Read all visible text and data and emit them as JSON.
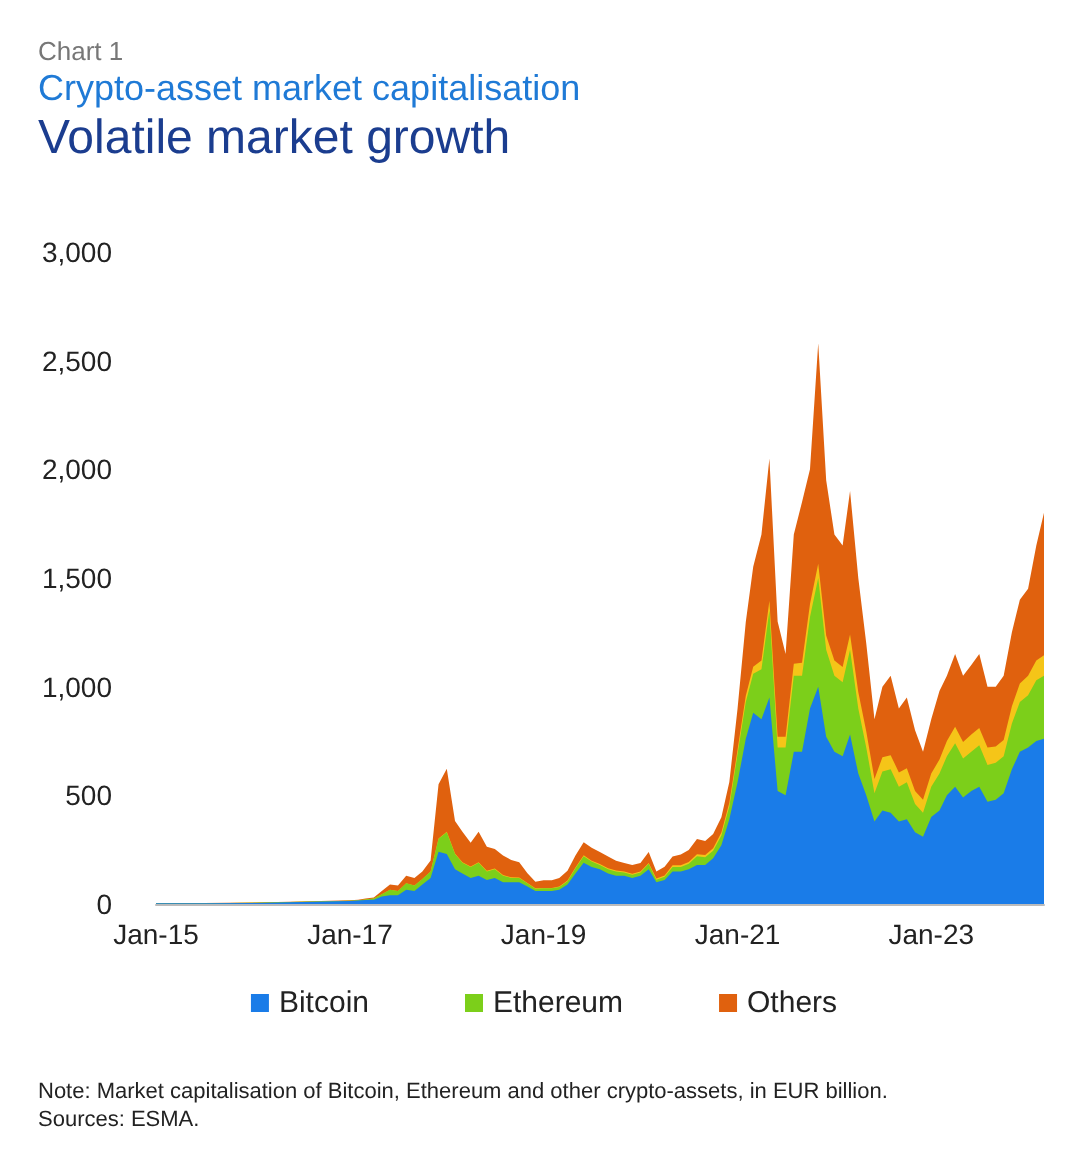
{
  "chart_data": {
    "type": "area",
    "title": "Crypto-asset market capitalisation",
    "subtitle": "Volatile market growth",
    "annotations": [
      "Chart 1",
      "Note: Market capitalisation of Bitcoin, Ethereum and other crypto-assets, in EUR billion.",
      "Sources: ESMA."
    ],
    "stacked": true,
    "marker": "none",
    "grid": false,
    "legend": "bottom",
    "x": [
      "2015-01",
      "2015-07",
      "2016-01",
      "2016-07",
      "2017-01",
      "2017-02",
      "2017-03",
      "2017-04",
      "2017-05",
      "2017-06",
      "2017-07",
      "2017-08",
      "2017-09",
      "2017-10",
      "2017-11",
      "2017-12",
      "2018-01",
      "2018-02",
      "2018-03",
      "2018-04",
      "2018-05",
      "2018-06",
      "2018-07",
      "2018-08",
      "2018-09",
      "2018-10",
      "2018-11",
      "2018-12",
      "2019-01",
      "2019-02",
      "2019-03",
      "2019-04",
      "2019-05",
      "2019-06",
      "2019-07",
      "2019-08",
      "2019-09",
      "2019-10",
      "2019-11",
      "2019-12",
      "2020-01",
      "2020-02",
      "2020-03",
      "2020-04",
      "2020-05",
      "2020-06",
      "2020-07",
      "2020-08",
      "2020-09",
      "2020-10",
      "2020-11",
      "2020-12",
      "2021-01",
      "2021-02",
      "2021-03",
      "2021-04",
      "2021-05",
      "2021-06",
      "2021-07",
      "2021-08",
      "2021-09",
      "2021-10",
      "2021-11",
      "2021-12",
      "2022-01",
      "2022-02",
      "2022-03",
      "2022-04",
      "2022-05",
      "2022-06",
      "2022-07",
      "2022-08",
      "2022-09",
      "2022-10",
      "2022-11",
      "2022-12",
      "2023-01",
      "2023-02",
      "2023-03",
      "2023-04",
      "2023-05",
      "2023-06",
      "2023-07",
      "2023-08",
      "2023-09",
      "2023-10",
      "2023-11",
      "2023-12",
      "2024-01",
      "2024-02",
      "2024-03"
    ],
    "series": [
      {
        "name": "Bitcoin",
        "color": "#1a7ce8",
        "values": [
          4,
          4,
          5,
          9,
          14,
          16,
          18,
          20,
          35,
          40,
          40,
          65,
          60,
          90,
          120,
          240,
          230,
          160,
          140,
          120,
          130,
          110,
          120,
          100,
          100,
          100,
          80,
          60,
          60,
          60,
          65,
          90,
          140,
          190,
          170,
          160,
          140,
          130,
          130,
          120,
          130,
          160,
          100,
          110,
          150,
          150,
          160,
          180,
          180,
          210,
          270,
          390,
          560,
          760,
          880,
          850,
          950,
          520,
          500,
          700,
          700,
          900,
          1000,
          770,
          700,
          680,
          780,
          600,
          500,
          380,
          430,
          420,
          380,
          390,
          330,
          310,
          400,
          430,
          500,
          540,
          490,
          520,
          540,
          470,
          480,
          510,
          620,
          700,
          720,
          750,
          760
        ]
      },
      {
        "name": "Ethereum",
        "color": "#7ccf1a",
        "values": [
          0,
          0,
          1,
          1,
          1,
          1,
          3,
          5,
          10,
          25,
          20,
          30,
          25,
          25,
          30,
          60,
          100,
          70,
          50,
          50,
          60,
          40,
          40,
          30,
          20,
          20,
          15,
          10,
          12,
          12,
          13,
          15,
          25,
          30,
          25,
          20,
          20,
          20,
          15,
          15,
          15,
          25,
          12,
          15,
          20,
          20,
          25,
          40,
          35,
          35,
          45,
          60,
          130,
          170,
          180,
          230,
          400,
          200,
          220,
          350,
          350,
          420,
          500,
          400,
          350,
          340,
          390,
          300,
          220,
          130,
          180,
          200,
          160,
          170,
          130,
          110,
          140,
          170,
          180,
          200,
          180,
          180,
          190,
          170,
          170,
          170,
          210,
          230,
          240,
          280,
          290
        ]
      },
      {
        "color": "#f5c518",
        "values": [
          0,
          0,
          0,
          0,
          0,
          0,
          0,
          0,
          0,
          0,
          0,
          0,
          0,
          0,
          0,
          1,
          2,
          2,
          2,
          2,
          2,
          3,
          3,
          3,
          3,
          2,
          2,
          2,
          2,
          2,
          2,
          3,
          3,
          4,
          4,
          4,
          4,
          4,
          4,
          4,
          4,
          4,
          5,
          6,
          8,
          8,
          8,
          9,
          10,
          12,
          14,
          16,
          20,
          28,
          32,
          40,
          45,
          50,
          50,
          55,
          60,
          60,
          65,
          65,
          70,
          70,
          70,
          75,
          75,
          65,
          65,
          65,
          65,
          65,
          60,
          60,
          60,
          65,
          70,
          75,
          75,
          80,
          80,
          80,
          75,
          75,
          80,
          85,
          90,
          90,
          95
        ]
      },
      {
        "name": "Others",
        "color": "#e0610e",
        "values": [
          1,
          1,
          1,
          1,
          2,
          3,
          4,
          5,
          15,
          25,
          25,
          35,
          35,
          35,
          50,
          250,
          290,
          150,
          140,
          110,
          140,
          110,
          90,
          90,
          80,
          70,
          45,
          30,
          35,
          35,
          40,
          45,
          55,
          60,
          60,
          55,
          55,
          45,
          40,
          40,
          40,
          50,
          33,
          40,
          40,
          50,
          55,
          70,
          65,
          65,
          70,
          95,
          190,
          340,
          460,
          580,
          655,
          530,
          380,
          595,
          740,
          620,
          1015,
          715,
          580,
          560,
          660,
          525,
          405,
          275,
          325,
          365,
          295,
          325,
          280,
          220,
          250,
          315,
          300,
          335,
          305,
          320,
          340,
          280,
          275,
          295,
          340,
          385,
          400,
          530,
          655
        ]
      }
    ],
    "xlim": [
      "2015-01",
      "2024-03"
    ],
    "xticks": [
      {
        "value": "2015-01",
        "label": "Jan-15"
      },
      {
        "value": "2017-01",
        "label": "Jan-17"
      },
      {
        "value": "2019-01",
        "label": "Jan-19"
      },
      {
        "value": "2021-01",
        "label": "Jan-21"
      },
      {
        "value": "2023-01",
        "label": "Jan-23"
      }
    ],
    "ylim": [
      0,
      3000
    ],
    "yticks": [
      0,
      500,
      {
        "value": 1000,
        "label": "1,000"
      },
      {
        "value": 1500,
        "label": "1,500"
      },
      {
        "value": 2000,
        "label": "2,000"
      },
      {
        "value": 2500,
        "label": "2,500"
      },
      {
        "value": 3000,
        "label": "3,000"
      }
    ]
  }
}
